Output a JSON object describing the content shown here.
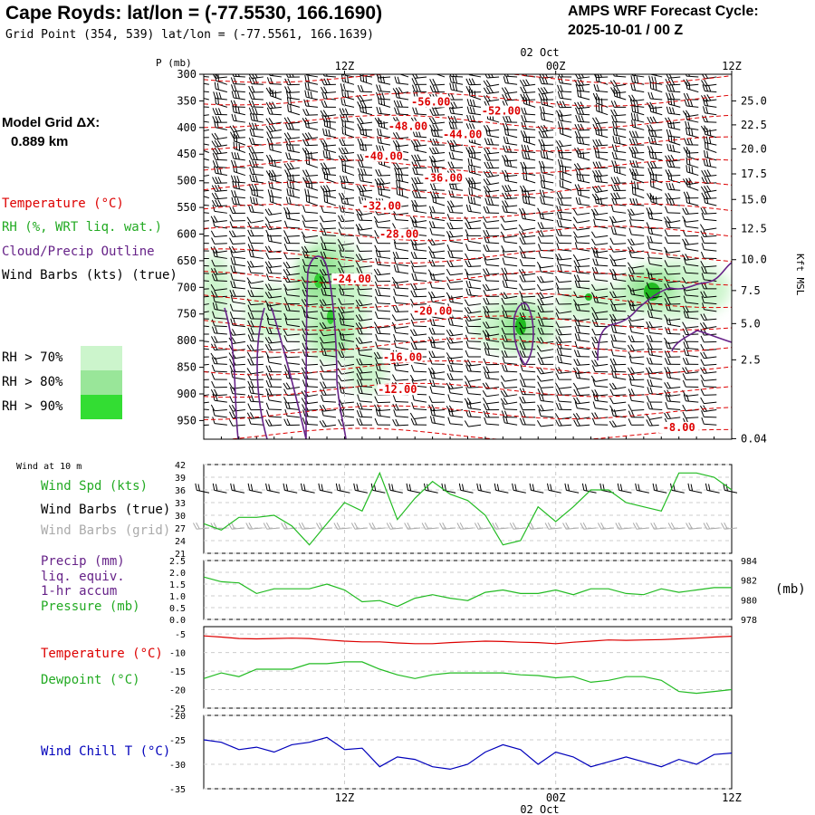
{
  "header": {
    "title": "Cape Royds:  lat/lon = (-77.5530, 166.1690)",
    "subtitle": "Grid Point (354, 539) lat/lon = (-77.5561, 166.1639)",
    "cycle_label": "AMPS WRF Forecast Cycle:",
    "cycle_value": "2025-10-01 / 00  Z"
  },
  "model_grid": {
    "label": "Model Grid ΔX:",
    "value": "0.889 km"
  },
  "legend": {
    "temperature": "Temperature (°C)",
    "rh": "RH (%, WRT liq. wat.)",
    "cloud": "Cloud/Precip Outline",
    "wind_barbs": "Wind Barbs (kts) (true)",
    "rh_levels": [
      "RH > 70%",
      "RH > 80%",
      "RH > 90%"
    ],
    "rh_colors": [
      "#ccf5cc",
      "#99e699",
      "#33dd33"
    ]
  },
  "time_axis": {
    "top_labels": [
      "12Z",
      "00Z",
      "12Z"
    ],
    "date_label": "02 Oct",
    "bottom_labels": [
      "12Z",
      "00Z",
      "12Z"
    ]
  },
  "colors": {
    "temperature": "#dd0000",
    "rh_green": "#22bb22",
    "cloud_outline": "#662288",
    "windchill": "#0000bb",
    "grid": "#bbbbbb",
    "grid_barbs": "#aaaaaa"
  },
  "panels": {
    "wind": {
      "title": "Wind at 10 m",
      "labels": [
        "Wind Spd (kts)",
        "Wind Barbs (true)",
        "Wind Barbs (grid)"
      ]
    },
    "precip": {
      "labels": [
        "Precip (mm)",
        "liq. equiv.",
        "1-hr accum",
        "Pressure (mb)"
      ],
      "right_unit": "(mb)"
    },
    "temp": {
      "labels": [
        "Temperature (°C)",
        "Dewpoint (°C)"
      ]
    },
    "chill": {
      "labels": [
        "Wind Chill T (°C)"
      ]
    }
  },
  "chart_data": [
    {
      "type": "contour",
      "name": "vertical cross-section",
      "y_axis_title": "P (mb)",
      "y_ticks": [
        "300",
        "350",
        "400",
        "450",
        "500",
        "550",
        "600",
        "650",
        "700",
        "750",
        "800",
        "850",
        "900",
        "950"
      ],
      "y_range": [
        300,
        985
      ],
      "right_axis_title": "Kft MSL",
      "right_ticks": [
        "25.0",
        "22.5",
        "20.0",
        "17.5",
        "15.0",
        "12.5",
        "10.0",
        "7.5",
        "5.0",
        "2.5",
        "0.04"
      ],
      "right_tick_pressures": [
        350,
        395,
        440,
        487,
        535,
        590,
        648,
        706,
        768,
        836,
        984
      ],
      "x_range_hours": [
        0,
        30
      ],
      "x_ticks_hours": [
        8,
        20,
        30
      ],
      "temperature_contour_labels": [
        {
          "text": "-56.00",
          "t": 12.9,
          "p": 357
        },
        {
          "text": "-52.00",
          "t": 16.9,
          "p": 374
        },
        {
          "text": "-48.00",
          "t": 11.6,
          "p": 403
        },
        {
          "text": "-44.00",
          "t": 14.7,
          "p": 418
        },
        {
          "text": "-40.00",
          "t": 10.2,
          "p": 459
        },
        {
          "text": "-36.00",
          "t": 13.6,
          "p": 500
        },
        {
          "text": "-32.00",
          "t": 10.1,
          "p": 552
        },
        {
          "text": "-28.00",
          "t": 11.1,
          "p": 605
        },
        {
          "text": "-24.00",
          "t": 8.4,
          "p": 689
        },
        {
          "text": "-20.00",
          "t": 13.0,
          "p": 750
        },
        {
          "text": "-16.00",
          "t": 11.3,
          "p": 836
        },
        {
          "text": "-12.00",
          "t": 11.0,
          "p": 897
        },
        {
          "text": "-8.00",
          "t": 27.0,
          "p": 968
        }
      ]
    },
    {
      "type": "line",
      "name": "wind speed 10 m",
      "y_ticks": [
        "42",
        "39",
        "36",
        "33",
        "30",
        "27",
        "24",
        "21"
      ],
      "y_range": [
        21,
        42
      ],
      "x": [
        0,
        1,
        2,
        3,
        4,
        5,
        6,
        7,
        8,
        9,
        10,
        11,
        12,
        13,
        14,
        15,
        16,
        17,
        18,
        19,
        20,
        21,
        22,
        23,
        24,
        25,
        26,
        27,
        28,
        29,
        30
      ],
      "series": [
        {
          "name": "Wind Spd (kts)",
          "values": [
            28,
            26.5,
            29.5,
            29.5,
            30,
            27.5,
            23,
            28,
            33,
            31,
            40,
            29,
            34,
            38,
            35,
            33.5,
            30,
            23,
            24,
            32,
            28.5,
            32,
            36,
            36,
            33,
            32,
            31,
            40,
            40,
            39,
            36
          ]
        }
      ]
    },
    {
      "type": "line",
      "name": "precip and pressure",
      "y_ticks": [
        "2.5",
        "2.0",
        "1.5",
        "1.0",
        "0.5",
        "0.0"
      ],
      "y_range": [
        0,
        2.5
      ],
      "right_ticks": [
        "984",
        "982",
        "980",
        "978"
      ],
      "series": [
        {
          "name": "Pressure (mb)",
          "values": [
            1.8,
            1.6,
            1.55,
            1.1,
            1.3,
            1.3,
            1.3,
            1.5,
            1.25,
            0.75,
            0.8,
            0.55,
            0.9,
            1.05,
            0.9,
            0.8,
            1.15,
            1.25,
            1.1,
            1.1,
            1.25,
            1.05,
            1.3,
            1.3,
            1.1,
            1.05,
            1.3,
            1.15,
            1.25,
            1.35,
            1.35
          ]
        }
      ]
    },
    {
      "type": "line",
      "name": "temperature and dewpoint",
      "y_ticks": [
        "-5",
        "-10",
        "-15",
        "-20",
        "-25"
      ],
      "y_range": [
        -25,
        -3
      ],
      "series": [
        {
          "name": "Temperature (°C)",
          "values": [
            -5.5,
            -5.8,
            -6.2,
            -6.3,
            -6.2,
            -6.1,
            -6.2,
            -6.6,
            -6.9,
            -7.1,
            -7.1,
            -7.4,
            -7.6,
            -7.6,
            -7.3,
            -7.1,
            -6.9,
            -7.0,
            -7.2,
            -7.3,
            -7.6,
            -7.2,
            -6.9,
            -6.6,
            -6.7,
            -6.6,
            -6.5,
            -6.3,
            -6.1,
            -5.8,
            -5.6
          ]
        },
        {
          "name": "Dewpoint (°C)",
          "values": [
            -17,
            -15.5,
            -16.5,
            -14.5,
            -14.5,
            -14.5,
            -13,
            -13,
            -12.5,
            -12.5,
            -14.5,
            -16,
            -17,
            -16,
            -15.5,
            -15.5,
            -15.5,
            -15.5,
            -16,
            -16.2,
            -16.8,
            -16.5,
            -18,
            -17.5,
            -16.5,
            -16.5,
            -17.5,
            -20.5,
            -21,
            -20.5,
            -20
          ]
        }
      ]
    },
    {
      "type": "line",
      "name": "wind chill",
      "y_ticks": [
        "-20",
        "-25",
        "-30",
        "-35"
      ],
      "y_range": [
        -35,
        -20
      ],
      "series": [
        {
          "name": "Wind Chill T (°C)",
          "values": [
            -25,
            -25.5,
            -27,
            -26.5,
            -27.5,
            -26,
            -25.5,
            -24.5,
            -27,
            -26.7,
            -30.5,
            -28.5,
            -29,
            -30.5,
            -31,
            -30,
            -27.5,
            -26,
            -27,
            -30,
            -27.5,
            -28.5,
            -30.5,
            -29.5,
            -28.5,
            -29.5,
            -30.5,
            -29,
            -30,
            -28,
            -27.7
          ]
        }
      ]
    }
  ]
}
